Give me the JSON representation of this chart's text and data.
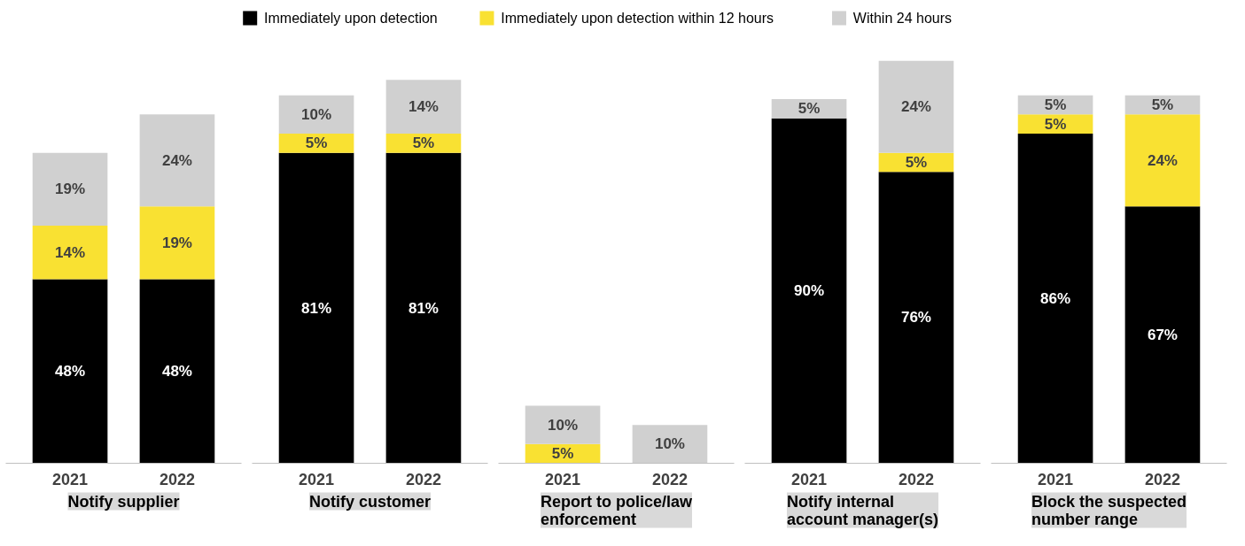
{
  "chart_data": [
    {
      "type": "bar",
      "stacked": true,
      "title": "Notify supplier",
      "categories": [
        "2021",
        "2022"
      ],
      "tick_labels": "x",
      "legend": "top",
      "series": [
        {
          "name": "Immediately upon detection",
          "color": "#000000",
          "values": [
            48,
            48
          ],
          "value_labels": [
            "48%",
            "48%"
          ]
        },
        {
          "name": "Immediately upon detection within 12 hours",
          "color": "#f9e132",
          "values": [
            14,
            19
          ],
          "value_labels": [
            "14%",
            "19%"
          ]
        },
        {
          "name": "Within 24 hours",
          "color": "#d0d0d0",
          "values": [
            19,
            24
          ],
          "value_labels": [
            "19%",
            "24%"
          ]
        }
      ]
    },
    {
      "type": "bar",
      "stacked": true,
      "title": "Notify customer",
      "categories": [
        "2021",
        "2022"
      ],
      "tick_labels": "x",
      "series": [
        {
          "color": "#000000",
          "values": [
            81,
            81
          ],
          "value_labels": [
            "81%",
            "81%"
          ]
        },
        {
          "color": "#f9e132",
          "values": [
            5,
            5
          ],
          "value_labels": [
            "5%",
            "5%"
          ]
        },
        {
          "color": "#d0d0d0",
          "values": [
            10,
            14
          ],
          "value_labels": [
            "10%",
            "14%"
          ]
        }
      ]
    },
    {
      "type": "bar",
      "stacked": true,
      "title": "Report to police/law enforcement",
      "categories": [
        "2021",
        "2022"
      ],
      "tick_labels": "x",
      "series": [
        {
          "color": "#000000",
          "values": [
            null,
            null
          ],
          "value_labels": [
            null,
            null
          ]
        },
        {
          "color": "#f9e132",
          "values": [
            5,
            null
          ],
          "value_labels": [
            "5%",
            null
          ]
        },
        {
          "color": "#d0d0d0",
          "values": [
            10,
            10
          ],
          "value_labels": [
            "10%",
            "10%"
          ]
        }
      ]
    },
    {
      "type": "bar",
      "stacked": true,
      "title": "Notify internal account manager(s)",
      "categories": [
        "2021",
        "2022"
      ],
      "tick_labels": "x",
      "series": [
        {
          "color": "#000000",
          "values": [
            90,
            76
          ],
          "value_labels": [
            "90%",
            "76%"
          ]
        },
        {
          "color": "#f9e132",
          "values": [
            null,
            5
          ],
          "value_labels": [
            null,
            "5%"
          ]
        },
        {
          "color": "#d0d0d0",
          "values": [
            5,
            24
          ],
          "value_labels": [
            "5%",
            "24%"
          ]
        }
      ]
    },
    {
      "type": "bar",
      "stacked": true,
      "title": "Block the suspected number range",
      "categories": [
        "2021",
        "2022"
      ],
      "tick_labels": "x",
      "series": [
        {
          "color": "#000000",
          "values": [
            86,
            67
          ],
          "value_labels": [
            "86%",
            "67%"
          ]
        },
        {
          "color": "#f9e132",
          "values": [
            5,
            24
          ],
          "value_labels": [
            "5%",
            "24%"
          ]
        },
        {
          "color": "#d0d0d0",
          "values": [
            5,
            5
          ],
          "value_labels": [
            "5%",
            "5%"
          ]
        }
      ]
    }
  ]
}
